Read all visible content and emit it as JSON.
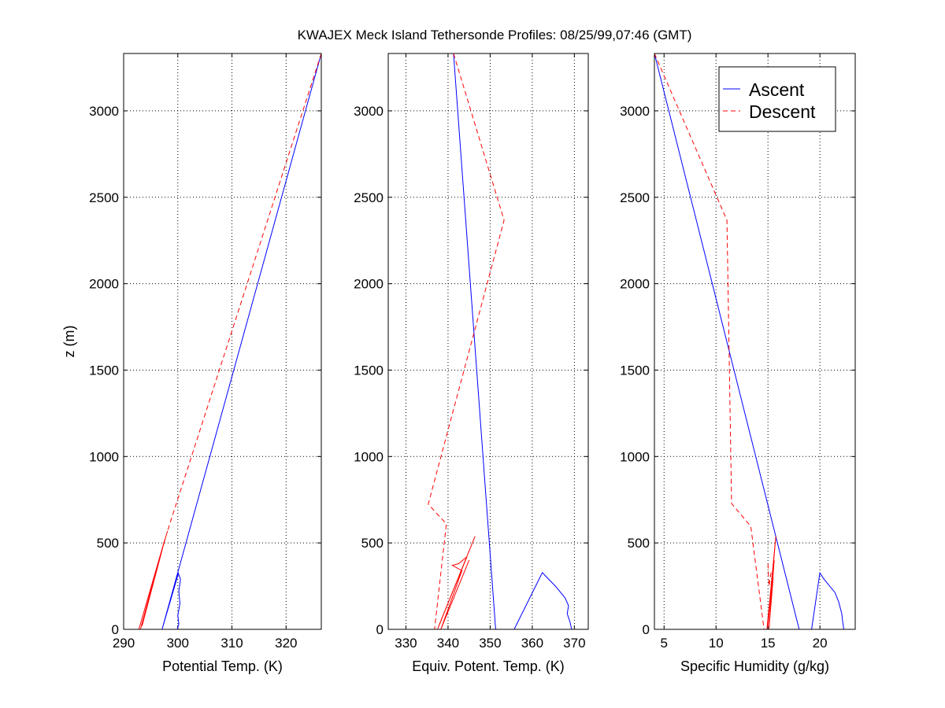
{
  "title": "KWAJEX Meck Island Tethersonde Profiles: 08/25/99,07:46 (GMT)",
  "colors": {
    "ascent": "#0000ff",
    "descent": "#ff0000"
  },
  "legend": {
    "placement": "top-right of third panel",
    "entries": [
      "Ascent",
      "Descent"
    ]
  },
  "chart_data": [
    {
      "type": "line",
      "xlabel": "Potential Temp. (K)",
      "ylabel": "z (m)",
      "xlim": [
        290,
        326.5
      ],
      "ylim": [
        0,
        3332
      ],
      "xticks": [
        290,
        300,
        310,
        320
      ],
      "yticks": [
        0,
        500,
        1000,
        1500,
        2000,
        2500,
        3000
      ],
      "grid": true,
      "series": [
        {
          "name": "Ascent",
          "style": "solid",
          "points": [
            [
              326.5,
              3332
            ],
            [
              297.1,
              0
            ],
            [
              300.1,
              323
            ],
            [
              300.5,
              290
            ],
            [
              300.2,
              220
            ],
            [
              300.4,
              150
            ],
            [
              300.0,
              80
            ],
            [
              300.2,
              30
            ],
            [
              299.9,
              0
            ]
          ]
        },
        {
          "name": "Descent",
          "style": "dashed",
          "points": [
            [
              326.5,
              3332
            ],
            [
              298.1,
              569
            ]
          ]
        },
        {
          "name": "Descent",
          "style": "solid",
          "points": [
            [
              298.1,
              569
            ],
            [
              292.8,
              0
            ],
            [
              297.6,
              520
            ],
            [
              293.1,
              0
            ],
            [
              297.2,
              470
            ],
            [
              293.4,
              20
            ],
            [
              296.8,
              430
            ]
          ]
        }
      ]
    },
    {
      "type": "line",
      "xlabel": "Equiv. Potent. Temp. (K)",
      "ylabel": "",
      "xlim": [
        325.8,
        373.3
      ],
      "ylim": [
        0,
        3332
      ],
      "xticks": [
        330,
        340,
        350,
        360,
        370
      ],
      "yticks": [
        0,
        500,
        1000,
        1500,
        2000,
        2500,
        3000
      ],
      "grid": true,
      "series": [
        {
          "name": "Ascent",
          "style": "solid",
          "points": [
            [
              341.3,
              3332
            ],
            [
              351.3,
              0
            ]
          ]
        },
        {
          "name": "Ascent",
          "style": "solid",
          "points": [
            [
              355.7,
              0
            ],
            [
              362.4,
              328
            ],
            [
              363.5,
              300
            ],
            [
              365.5,
              250
            ],
            [
              367.8,
              182
            ],
            [
              368.6,
              137
            ],
            [
              368.3,
              90
            ],
            [
              369.0,
              40
            ],
            [
              369.3,
              3
            ],
            [
              369.5,
              0
            ],
            [
              373.3,
              0
            ]
          ]
        },
        {
          "name": "Descent",
          "style": "dashed",
          "points": [
            [
              341.3,
              3332
            ],
            [
              353.3,
              2367
            ],
            [
              335.3,
              724
            ],
            [
              339.6,
              610
            ],
            [
              336.8,
              0
            ]
          ]
        },
        {
          "name": "Descent",
          "style": "solid",
          "points": [
            [
              337.5,
              0
            ],
            [
              346.4,
              538
            ],
            [
              337.8,
              20
            ],
            [
              344.5,
              420
            ],
            [
              342.5,
              380
            ],
            [
              341.0,
              370
            ],
            [
              343.3,
              340
            ],
            [
              338.3,
              0
            ],
            [
              345.0,
              400
            ]
          ]
        }
      ]
    },
    {
      "type": "line",
      "xlabel": "Specific Humidity (g/kg)",
      "ylabel": "",
      "xlim": [
        4.07,
        23.4
      ],
      "ylim": [
        0,
        3332
      ],
      "xticks": [
        5,
        10,
        15,
        20
      ],
      "yticks": [
        0,
        500,
        1000,
        1500,
        2000,
        2500,
        3000
      ],
      "grid": true,
      "series": [
        {
          "name": "Ascent",
          "style": "solid",
          "points": [
            [
              4.07,
              3332
            ],
            [
              18.0,
              0
            ]
          ]
        },
        {
          "name": "Ascent",
          "style": "solid",
          "points": [
            [
              19.2,
              0
            ],
            [
              20.0,
              327
            ],
            [
              20.4,
              290
            ],
            [
              21.45,
              213
            ],
            [
              21.8,
              160
            ],
            [
              22.1,
              91
            ],
            [
              22.2,
              40
            ],
            [
              22.3,
              0
            ],
            [
              23.4,
              0
            ]
          ]
        },
        {
          "name": "Descent",
          "style": "dashed",
          "points": [
            [
              4.07,
              3332
            ],
            [
              11.05,
              2367
            ],
            [
              11.5,
              728
            ],
            [
              13.35,
              596
            ],
            [
              14.62,
              0
            ]
          ]
        },
        {
          "name": "Descent",
          "style": "solid",
          "points": [
            [
              14.9,
              0
            ],
            [
              15.76,
              538
            ],
            [
              15.0,
              20
            ],
            [
              15.6,
              400
            ],
            [
              15.1,
              0
            ],
            [
              15.5,
              300
            ]
          ]
        },
        {
          "name": "Descent",
          "style": "dashed",
          "points": [
            [
              15.0,
              380
            ],
            [
              15.1,
              250
            ],
            [
              15.3,
              330
            ]
          ]
        }
      ]
    }
  ]
}
